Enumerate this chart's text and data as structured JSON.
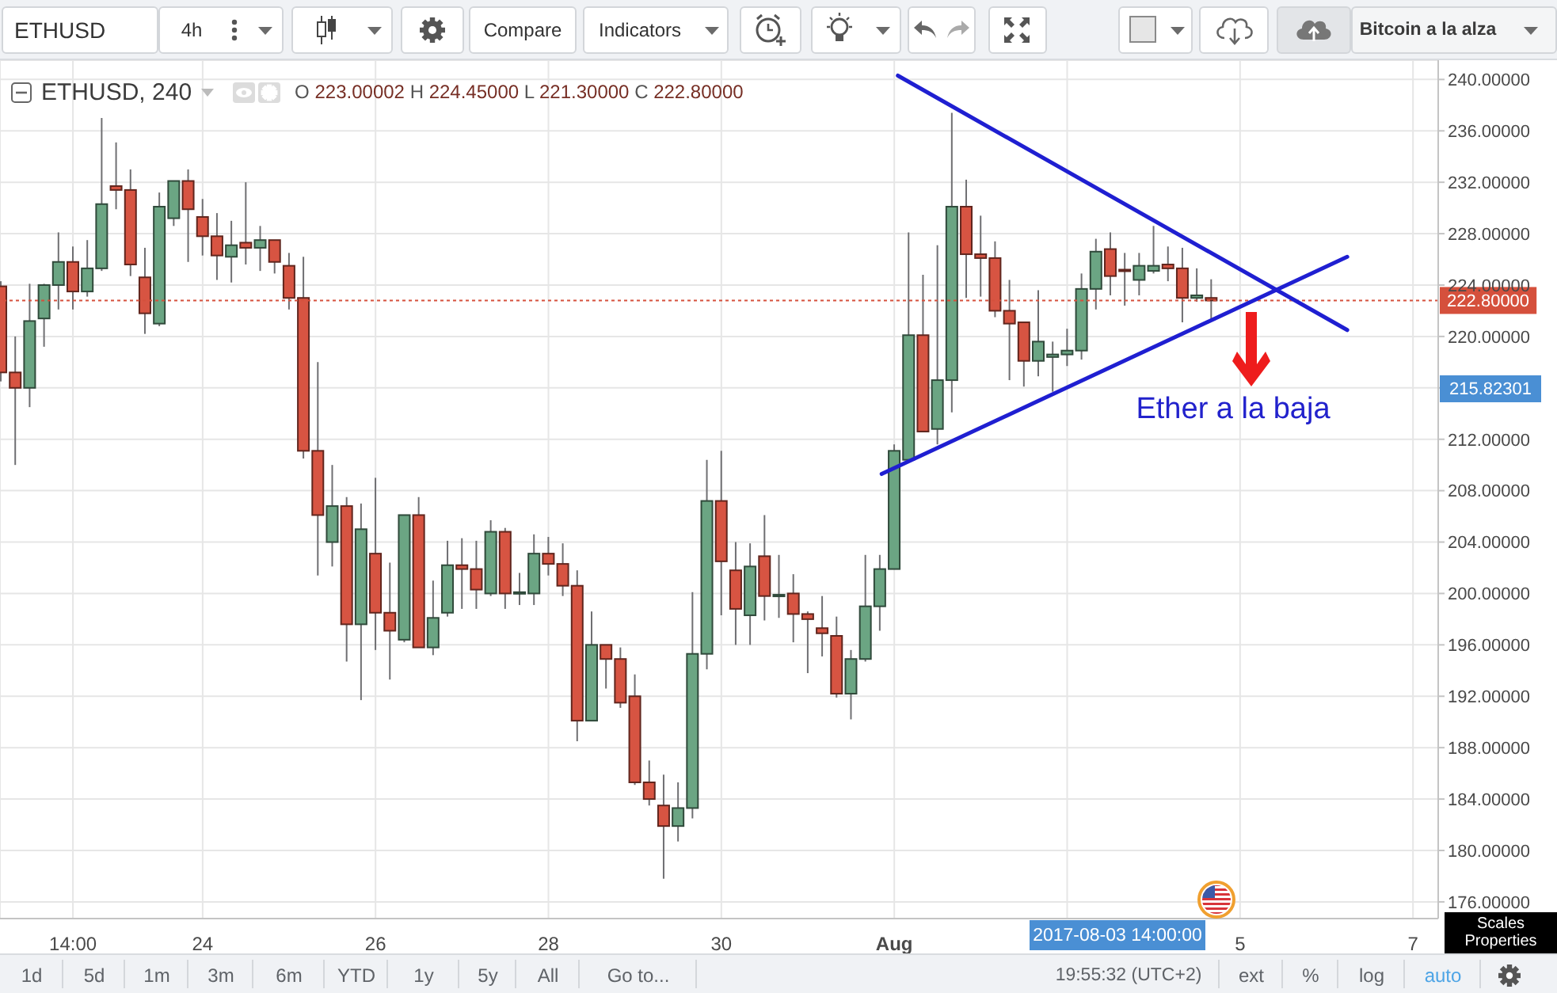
{
  "chart_data": {
    "type": "candlestick",
    "title": "ETHUSD, 240",
    "subtitle": "O 223.00002 H 224.45000 L 221.30000 C 222.80000",
    "x": [
      "2017-07-21T18:00",
      "2017-07-21T22:00",
      "2017-07-22T02:00",
      "2017-07-22T06:00",
      "2017-07-22T10:00",
      "2017-07-22T14:00",
      "2017-07-22T18:00",
      "2017-07-22T22:00",
      "2017-07-23T02:00",
      "2017-07-23T06:00",
      "2017-07-23T10:00",
      "2017-07-23T14:00",
      "2017-07-23T18:00",
      "2017-07-23T22:00",
      "2017-07-24T02:00",
      "2017-07-24T06:00",
      "2017-07-24T10:00",
      "2017-07-24T14:00",
      "2017-07-24T18:00",
      "2017-07-24T22:00",
      "2017-07-25T02:00",
      "2017-07-25T06:00",
      "2017-07-25T10:00",
      "2017-07-25T14:00",
      "2017-07-25T18:00",
      "2017-07-25T22:00",
      "2017-07-26T02:00",
      "2017-07-26T06:00",
      "2017-07-26T10:00",
      "2017-07-26T14:00",
      "2017-07-26T18:00",
      "2017-07-26T22:00",
      "2017-07-27T02:00",
      "2017-07-27T06:00",
      "2017-07-27T10:00",
      "2017-07-27T14:00",
      "2017-07-27T18:00",
      "2017-07-27T22:00",
      "2017-07-28T02:00",
      "2017-07-28T06:00",
      "2017-07-28T10:00",
      "2017-07-28T14:00",
      "2017-07-28T18:00",
      "2017-07-28T22:00",
      "2017-07-29T02:00",
      "2017-07-29T06:00",
      "2017-07-29T10:00",
      "2017-07-29T14:00",
      "2017-07-29T18:00",
      "2017-07-29T22:00",
      "2017-07-30T02:00",
      "2017-07-30T06:00",
      "2017-07-30T10:00",
      "2017-07-30T14:00",
      "2017-07-30T18:00",
      "2017-07-30T22:00",
      "2017-07-31T02:00",
      "2017-07-31T06:00",
      "2017-07-31T10:00",
      "2017-07-31T14:00",
      "2017-07-31T18:00",
      "2017-07-31T22:00",
      "2017-08-01T02:00",
      "2017-08-01T06:00",
      "2017-08-01T10:00",
      "2017-08-01T14:00",
      "2017-08-01T18:00",
      "2017-08-01T22:00",
      "2017-08-02T02:00",
      "2017-08-02T06:00",
      "2017-08-02T10:00",
      "2017-08-02T14:00",
      "2017-08-02T18:00",
      "2017-08-02T22:00",
      "2017-08-03T02:00",
      "2017-08-03T06:00",
      "2017-08-03T10:00",
      "2017-08-03T14:00",
      "2017-08-03T18:00",
      "2017-08-03T22:00",
      "2017-08-04T02:00",
      "2017-08-04T06:00",
      "2017-08-04T10:00",
      "2017-08-04T14:00",
      "2017-08-04T18:00"
    ],
    "ohlc": [
      [
        223.9,
        224.3,
        216.5,
        217.2
      ],
      [
        217.2,
        220.0,
        210.0,
        216.0
      ],
      [
        216.0,
        224.1,
        214.5,
        221.2
      ],
      [
        221.4,
        224.1,
        219.2,
        224.0
      ],
      [
        224.0,
        228.1,
        222.1,
        225.8
      ],
      [
        225.8,
        227.0,
        222.1,
        223.5
      ],
      [
        223.5,
        227.5,
        223.1,
        225.3
      ],
      [
        225.3,
        237.0,
        225.1,
        230.3
      ],
      [
        231.7,
        235.1,
        229.9,
        231.4
      ],
      [
        231.4,
        233.0,
        224.7,
        225.6
      ],
      [
        224.6,
        226.9,
        220.2,
        221.8
      ],
      [
        221.0,
        231.2,
        220.8,
        230.1
      ],
      [
        229.2,
        232.1,
        228.6,
        232.1
      ],
      [
        232.1,
        233.0,
        225.8,
        229.9
      ],
      [
        229.3,
        230.7,
        226.3,
        227.8
      ],
      [
        227.8,
        229.6,
        224.4,
        226.3
      ],
      [
        226.2,
        229.0,
        224.2,
        227.1
      ],
      [
        227.3,
        232.0,
        225.6,
        226.9
      ],
      [
        226.9,
        228.6,
        225.1,
        227.5
      ],
      [
        227.5,
        227.5,
        224.9,
        225.8
      ],
      [
        225.5,
        226.5,
        222.1,
        223.0
      ],
      [
        223.0,
        226.2,
        210.5,
        211.1
      ],
      [
        211.1,
        218.0,
        201.4,
        206.1
      ],
      [
        204.0,
        210.0,
        202.1,
        206.8
      ],
      [
        206.8,
        207.5,
        194.7,
        197.6
      ],
      [
        197.6,
        207.0,
        191.7,
        205.0
      ],
      [
        203.1,
        209.0,
        195.6,
        198.5
      ],
      [
        198.5,
        202.4,
        193.3,
        197.1
      ],
      [
        196.4,
        206.1,
        196.2,
        206.1
      ],
      [
        206.1,
        207.5,
        195.8,
        195.8
      ],
      [
        195.8,
        201.0,
        195.2,
        198.1
      ],
      [
        198.5,
        204.1,
        198.2,
        202.2
      ],
      [
        202.2,
        204.3,
        198.8,
        201.9
      ],
      [
        201.9,
        204.1,
        198.8,
        200.3
      ],
      [
        200.0,
        205.7,
        199.8,
        204.8
      ],
      [
        204.8,
        205.1,
        198.8,
        200.0
      ],
      [
        200.1,
        201.6,
        199.1,
        200.1
      ],
      [
        200.0,
        204.6,
        199.1,
        203.1
      ],
      [
        203.1,
        204.4,
        201.4,
        202.3
      ],
      [
        202.3,
        203.9,
        199.8,
        200.6
      ],
      [
        200.6,
        201.8,
        188.5,
        190.1
      ],
      [
        190.1,
        198.6,
        190.1,
        196.0
      ],
      [
        196.0,
        196.0,
        192.6,
        194.9
      ],
      [
        194.9,
        195.8,
        191.1,
        191.5
      ],
      [
        192.0,
        193.7,
        185.1,
        185.3
      ],
      [
        185.3,
        187.0,
        183.5,
        184.0
      ],
      [
        183.5,
        185.9,
        177.8,
        181.9
      ],
      [
        181.9,
        185.3,
        180.7,
        183.3
      ],
      [
        183.3,
        200.1,
        182.5,
        195.3
      ],
      [
        195.3,
        210.4,
        194.1,
        207.2
      ],
      [
        207.2,
        211.1,
        198.3,
        202.5
      ],
      [
        201.8,
        204.0,
        196.0,
        198.8
      ],
      [
        198.3,
        203.9,
        196.0,
        202.1
      ],
      [
        202.9,
        206.1,
        197.9,
        199.8
      ],
      [
        199.9,
        203.0,
        198.1,
        199.9
      ],
      [
        200.0,
        201.5,
        196.2,
        198.4
      ],
      [
        198.4,
        198.6,
        193.8,
        198.0
      ],
      [
        197.3,
        199.8,
        195.1,
        196.9
      ],
      [
        196.7,
        198.2,
        191.9,
        192.2
      ],
      [
        192.2,
        195.6,
        190.2,
        194.9
      ],
      [
        194.9,
        203.0,
        194.7,
        199.0
      ],
      [
        199.0,
        203.0,
        197.1,
        201.9
      ],
      [
        201.9,
        211.6,
        201.9,
        211.1
      ],
      [
        210.4,
        228.1,
        210.2,
        220.1
      ],
      [
        220.1,
        224.8,
        212.6,
        212.6
      ],
      [
        212.8,
        227.1,
        211.6,
        216.6
      ],
      [
        216.6,
        237.4,
        214.1,
        230.1
      ],
      [
        230.1,
        232.2,
        223.0,
        226.4
      ],
      [
        226.4,
        229.4,
        223.1,
        226.1
      ],
      [
        226.1,
        227.4,
        221.5,
        222.0
      ],
      [
        222.0,
        224.4,
        216.6,
        221.0
      ],
      [
        221.1,
        221.1,
        216.1,
        218.1
      ],
      [
        218.1,
        223.6,
        216.9,
        219.6
      ],
      [
        218.4,
        219.6,
        215.7,
        218.6
      ],
      [
        218.6,
        220.6,
        217.7,
        218.9
      ],
      [
        218.9,
        224.9,
        218.2,
        223.7
      ],
      [
        223.7,
        227.6,
        222.1,
        226.6
      ],
      [
        226.8,
        228.1,
        223.2,
        224.7
      ],
      [
        225.2,
        226.5,
        222.4,
        225.1
      ],
      [
        224.4,
        226.5,
        223.2,
        225.5
      ],
      [
        225.1,
        228.6,
        224.9,
        225.5
      ],
      [
        225.6,
        227.0,
        224.3,
        225.3
      ],
      [
        225.3,
        226.9,
        221.1,
        223.0
      ],
      [
        223.0,
        225.3,
        222.7,
        223.2
      ],
      [
        223.00002,
        224.45,
        221.3,
        222.8
      ]
    ],
    "colors": [
      "#d75442",
      "#d75442",
      "#6ba583",
      "#6ba583",
      "#6ba583",
      "#d75442",
      "#6ba583",
      "#6ba583",
      "#d75442",
      "#d75442",
      "#d75442",
      "#6ba583",
      "#6ba583",
      "#d75442",
      "#d75442",
      "#d75442",
      "#6ba583",
      "#d75442",
      "#6ba583",
      "#d75442",
      "#d75442",
      "#d75442",
      "#d75442",
      "#6ba583",
      "#d75442",
      "#6ba583",
      "#d75442",
      "#d75442",
      "#6ba583",
      "#d75442",
      "#6ba583",
      "#6ba583",
      "#d75442",
      "#d75442",
      "#6ba583",
      "#d75442",
      "#6ba583",
      "#6ba583",
      "#d75442",
      "#d75442",
      "#d75442",
      "#6ba583",
      "#d75442",
      "#d75442",
      "#d75442",
      "#d75442",
      "#d75442",
      "#6ba583",
      "#6ba583",
      "#6ba583",
      "#d75442",
      "#d75442",
      "#6ba583",
      "#d75442",
      "#6ba583",
      "#d75442",
      "#d75442",
      "#d75442",
      "#d75442",
      "#6ba583",
      "#6ba583",
      "#6ba583",
      "#6ba583",
      "#6ba583",
      "#d75442",
      "#6ba583",
      "#6ba583",
      "#d75442",
      "#d75442",
      "#d75442",
      "#d75442",
      "#d75442",
      "#6ba583",
      "#6ba583",
      "#6ba583",
      "#6ba583",
      "#6ba583",
      "#d75442",
      "#d75442",
      "#6ba583",
      "#6ba583",
      "#d75442",
      "#d75442",
      "#6ba583",
      "#d75442"
    ],
    "series": [
      {
        "type": "line",
        "x": [
          "2017-08-01T03:00",
          "2017-08-06T07:45"
        ],
        "values": [
          240.3,
          220.5
        ],
        "color": "#1f1fd1"
      },
      {
        "type": "line",
        "x": [
          "2017-07-31T22:30",
          "2017-08-06T07:45"
        ],
        "values": [
          209.3,
          226.2
        ],
        "color": "#1f1fd1"
      }
    ],
    "xlim": [
      "2017-07-21T17:45",
      "2017-08-07T09:00"
    ],
    "xticks": [
      {
        "value": "2017-07-22T14:00",
        "label": "14:00"
      },
      {
        "value": "2017-07-24T02:00",
        "label": "24"
      },
      {
        "value": "2017-07-26T02:00",
        "label": "26"
      },
      {
        "value": "2017-07-28T02:00",
        "label": "28"
      },
      {
        "value": "2017-07-30T02:00",
        "label": "30"
      },
      {
        "value": "2017-08-01T02:00",
        "label": "Aug"
      },
      {
        "value": "2017-08-03T02:00",
        "label": null
      },
      {
        "value": "2017-08-05T02:00",
        "label": "5"
      },
      {
        "value": "2017-08-07T02:00",
        "label": "7"
      }
    ],
    "ylim": [
      174.7,
      241.5
    ],
    "yticks": [
      {
        "value": 176,
        "label": "176.00000"
      },
      {
        "value": 180,
        "label": "180.00000"
      },
      {
        "value": 184,
        "label": "184.00000"
      },
      {
        "value": 188,
        "label": "188.00000"
      },
      {
        "value": 192,
        "label": "192.00000"
      },
      {
        "value": 196,
        "label": "196.00000"
      },
      {
        "value": 200,
        "label": "200.00000"
      },
      {
        "value": 204,
        "label": "204.00000"
      },
      {
        "value": 208,
        "label": "208.00000"
      },
      {
        "value": 212,
        "label": "212.00000"
      },
      {
        "value": 216,
        "label": null
      },
      {
        "value": 220,
        "label": "220.00000"
      },
      {
        "value": 224,
        "label": "224.00000"
      },
      {
        "value": 228,
        "label": "228.00000"
      },
      {
        "value": 232,
        "label": "232.00000"
      },
      {
        "value": 236,
        "label": "236.00000"
      },
      {
        "value": 240,
        "label": "240.00000"
      }
    ],
    "grid": true,
    "ref_lines": [
      {
        "axis": "y",
        "value": 222.8,
        "label": "222.80000",
        "color": "#d5503c",
        "line_style": "dotted"
      }
    ],
    "annotations": [
      "ETHUSD",
      "4h",
      "Compare",
      "Indicators",
      "Bitcoin a la alza",
      "1d",
      "5d",
      "1m",
      "3m",
      "6m",
      "YTD",
      "1y",
      "5y",
      "All",
      "Go to...",
      "19:55:32 (UTC+2)",
      "ext",
      "%",
      "log",
      "auto",
      "Scales Properties",
      "Ether a la baja",
      "2017-08-03 14:00:00",
      "215.82301"
    ]
  }
}
